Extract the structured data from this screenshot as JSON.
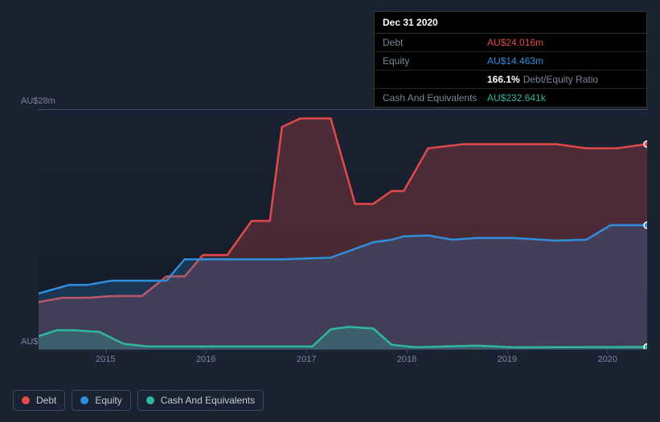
{
  "tooltip": {
    "date": "Dec 31 2020",
    "rows": [
      {
        "label": "Debt",
        "value": "AU$24.016m",
        "color": "#e24a4a"
      },
      {
        "label": "Equity",
        "value": "AU$14.463m",
        "color": "#2f8fdd"
      },
      {
        "label": "",
        "ratio_pct": "166.1%",
        "ratio_label": "Debt/Equity Ratio"
      },
      {
        "label": "Cash And Equivalents",
        "value": "AU$232.641k",
        "color": "#2fb8a0"
      }
    ]
  },
  "chart": {
    "type": "area",
    "background_top": "#1b2333",
    "background_bottom": "#141c2a",
    "axis_line_color": "#3a4a63",
    "text_color": "#7a8699",
    "y_max": 28,
    "y_min": 0,
    "y_label_top": "AU$28m",
    "y_label_bottom": "AU$0",
    "x_ticks": [
      "2015",
      "2016",
      "2017",
      "2018",
      "2019",
      "2020"
    ],
    "x_tick_positions_pct": [
      11,
      27.5,
      44,
      60.5,
      77,
      93.5
    ],
    "series": [
      {
        "name": "Debt",
        "color": "#e24a4a",
        "fill_opacity": 0.25,
        "line_width": 2.5,
        "x_pct": [
          0,
          4,
          8,
          12,
          17,
          21,
          24,
          27,
          31,
          35,
          38,
          40,
          43,
          45,
          48,
          52,
          55,
          58,
          60,
          64,
          70,
          78,
          85,
          90,
          95,
          100
        ],
        "y_val": [
          5.5,
          6.0,
          6.0,
          6.2,
          6.2,
          8.5,
          8.5,
          11,
          11,
          15,
          15,
          26,
          27,
          27,
          27,
          17,
          17,
          18.5,
          18.5,
          23.5,
          24,
          24,
          24,
          23.5,
          23.5,
          24.0
        ]
      },
      {
        "name": "Equity",
        "color": "#2f8fdd",
        "fill_opacity": 0.22,
        "line_width": 2.5,
        "x_pct": [
          0,
          5,
          8,
          12,
          21,
          24,
          27,
          40,
          48,
          55,
          58,
          60,
          64,
          68,
          72,
          78,
          85,
          90,
          94,
          100
        ],
        "y_val": [
          6.5,
          7.5,
          7.5,
          8.0,
          8.0,
          10.5,
          10.5,
          10.5,
          10.7,
          12.5,
          12.8,
          13.2,
          13.3,
          12.8,
          13.0,
          13.0,
          12.7,
          12.8,
          14.5,
          14.5
        ]
      },
      {
        "name": "Cash And Equivalents",
        "color": "#2fb8a0",
        "fill_opacity": 0.28,
        "line_width": 2.5,
        "x_pct": [
          0,
          3,
          6,
          10,
          14,
          18,
          45,
          48,
          51,
          55,
          58,
          62,
          72,
          78,
          100
        ],
        "y_val": [
          1.5,
          2.2,
          2.2,
          2.0,
          0.6,
          0.3,
          0.3,
          2.3,
          2.6,
          2.4,
          0.5,
          0.2,
          0.4,
          0.2,
          0.23
        ]
      }
    ],
    "end_markers": true,
    "marker_radius": 4
  },
  "legend": {
    "items": [
      {
        "label": "Debt",
        "color": "#e24a4a"
      },
      {
        "label": "Equity",
        "color": "#2f8fdd"
      },
      {
        "label": "Cash And Equivalents",
        "color": "#2fb8a0"
      }
    ],
    "border_color": "#3a4a63",
    "text_color": "#c0c9d6"
  }
}
